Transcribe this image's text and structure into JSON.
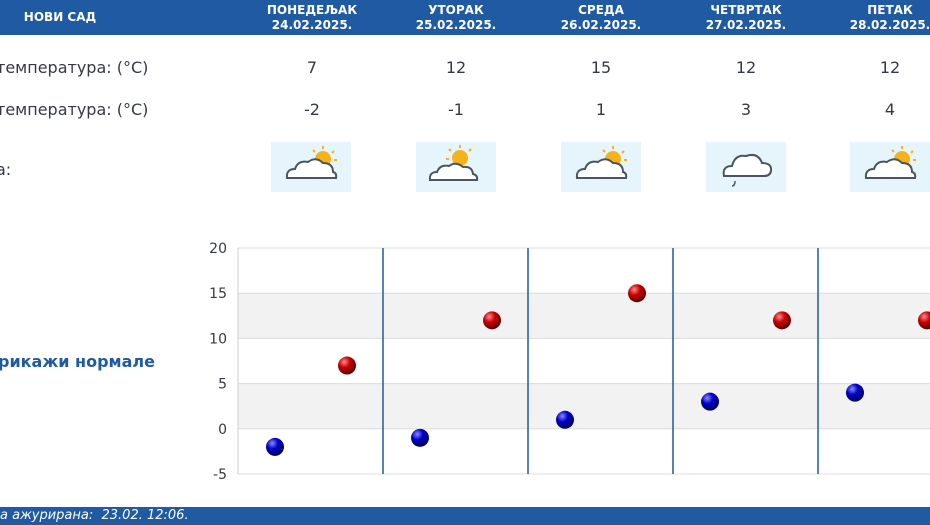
{
  "header": {
    "city": "НОВИ САД",
    "days": [
      {
        "name": "ПОНЕДЕЉАК",
        "date": "24.02.2025."
      },
      {
        "name": "УТОРАК",
        "date": "25.02.2025."
      },
      {
        "name": "СРЕДА",
        "date": "26.02.2025."
      },
      {
        "name": "ЧЕТВРТАК",
        "date": "27.02.2025."
      },
      {
        "name": "ПЕТАК",
        "date": "28.02.2025."
      }
    ]
  },
  "rows": {
    "max_label": "температура: (°C)",
    "min_label": "температура: (°C)",
    "icon_label": "а:",
    "max": [
      "7",
      "12",
      "15",
      "12",
      "12"
    ],
    "min": [
      "-2",
      "-1",
      "1",
      "3",
      "4"
    ],
    "icons": [
      "partly-cloudy-icon",
      "partly-sunny-icon",
      "partly-cloudy-icon",
      "cloudy-light-rain-icon",
      "partly-cloudy-icon"
    ]
  },
  "link": {
    "label": "рикажи нормале"
  },
  "chart_data": {
    "type": "scatter",
    "categories": [
      "24.02.2025.",
      "25.02.2025.",
      "26.02.2025.",
      "27.02.2025.",
      "28.02.2025."
    ],
    "series": [
      {
        "values": [
          7,
          12,
          15,
          12,
          12
        ],
        "color": "#cc0000"
      },
      {
        "values": [
          -2,
          -1,
          1,
          3,
          4
        ],
        "color": "#0000cc"
      }
    ],
    "yticks": [
      "20",
      "15",
      "10",
      "5",
      "0",
      "-5"
    ],
    "ylim": [
      -5,
      20
    ],
    "grid": true,
    "bands_color": "#f2f2f2",
    "divider_color": "#1f5aa3"
  },
  "footer": {
    "text": "а ажурирана:  23.02. 12:06."
  },
  "colors": {
    "brand": "#1f5aa3",
    "text": "#333a44",
    "icon_bg": "#e6f4fb"
  }
}
